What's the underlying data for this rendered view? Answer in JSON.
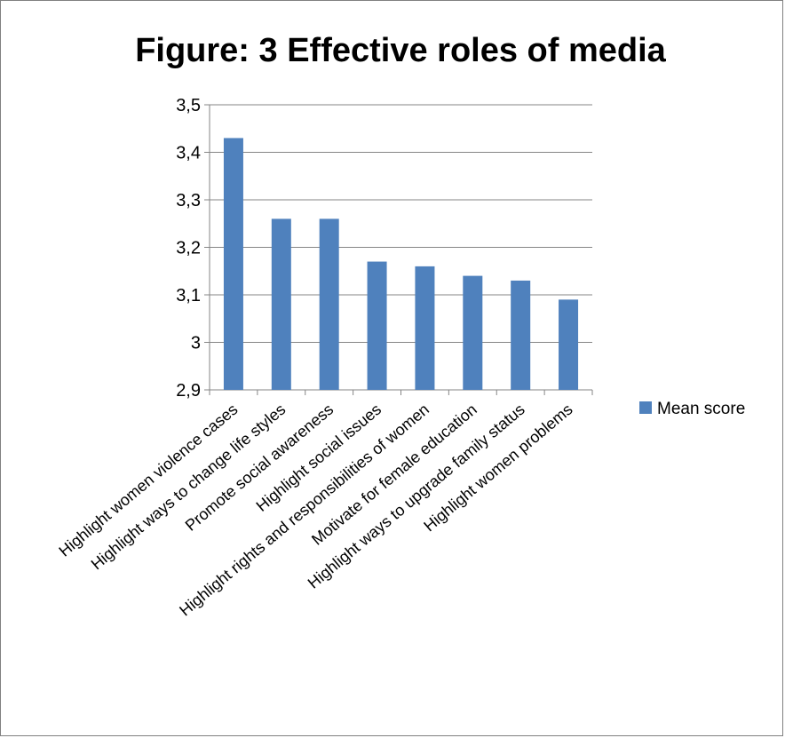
{
  "chart_data": {
    "type": "bar",
    "title": "Figure: 3 Effective roles of media",
    "xlabel": "",
    "ylabel": "",
    "categories": [
      "Highlight women violence cases",
      "Highlight ways to change life styles",
      "Promote social awareness",
      "Highlight social issues",
      "Highlight rights and responsibilities of women",
      "Motivate for female education",
      "Highlight ways to upgrade family status",
      "Highlight women problems"
    ],
    "series": [
      {
        "name": "Mean score",
        "values": [
          3.43,
          3.26,
          3.26,
          3.17,
          3.16,
          3.14,
          3.13,
          3.09
        ],
        "color": "#4F81BD"
      }
    ],
    "ylim": [
      2.9,
      3.5
    ],
    "yticks": [
      "2,9",
      "3",
      "3,1",
      "3,2",
      "3,3",
      "3,4",
      "3,5"
    ],
    "grid": true,
    "legend": "right"
  }
}
